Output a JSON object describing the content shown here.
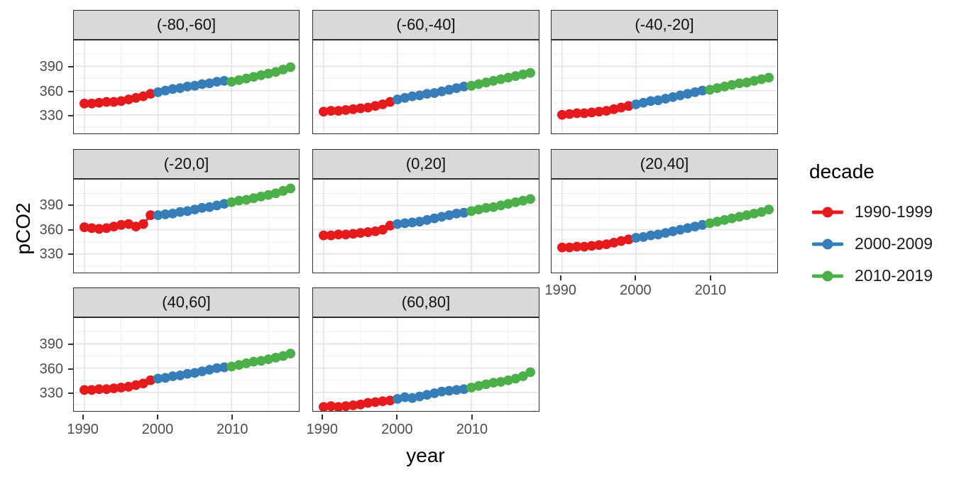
{
  "figure": {
    "y_axis_title": "pCO2",
    "x_axis_title": "year"
  },
  "legend": {
    "title": "decade",
    "entries": [
      {
        "label": "1990-1999",
        "color": "#E41A1C"
      },
      {
        "label": "2000-2009",
        "color": "#377EB8"
      },
      {
        "label": "2010-2019",
        "color": "#4DAF4A"
      }
    ]
  },
  "chart_data": {
    "type": "scatter",
    "title": "",
    "xlabel": "year",
    "ylabel": "pCO2",
    "grid": true,
    "legend_position": "right",
    "x_range": [
      1988.7,
      2019.0
    ],
    "y_range": [
      307,
      422
    ],
    "x_major_ticks": [
      1990,
      2000,
      2010
    ],
    "x_minor_ticks": [
      1995,
      2005,
      2015
    ],
    "y_major_ticks": [
      390,
      360,
      330
    ],
    "y_minor_ticks": [
      315,
      345,
      375,
      405
    ],
    "years": [
      1990,
      1991,
      1992,
      1993,
      1994,
      1995,
      1996,
      1997,
      1998,
      1999,
      2000,
      2001,
      2002,
      2003,
      2004,
      2005,
      2006,
      2007,
      2008,
      2009,
      2010,
      2011,
      2012,
      2013,
      2014,
      2015,
      2016,
      2017,
      2018
    ],
    "decades": [
      {
        "name": "1990-1999",
        "start": 1990,
        "end": 1999,
        "color": "#E41A1C"
      },
      {
        "name": "2000-2009",
        "start": 2000,
        "end": 2009,
        "color": "#377EB8"
      },
      {
        "name": "2010-2019",
        "start": 2010,
        "end": 2019,
        "color": "#4DAF4A"
      }
    ],
    "facets": [
      {
        "label": "(-80,-60]",
        "values": [
          344,
          344,
          345,
          346,
          346,
          347,
          349,
          351,
          353,
          356,
          358,
          360,
          362,
          363,
          365,
          366,
          368,
          369,
          371,
          372,
          371,
          373,
          375,
          377,
          379,
          381,
          383,
          386,
          389
        ]
      },
      {
        "label": "(-60,-40]",
        "values": [
          334,
          335,
          335,
          336,
          337,
          338,
          339,
          341,
          343,
          346,
          349,
          351,
          353,
          354,
          356,
          357,
          359,
          361,
          363,
          365,
          366,
          368,
          370,
          372,
          374,
          376,
          378,
          380,
          382
        ]
      },
      {
        "label": "(-40,-20]",
        "values": [
          330,
          331,
          332,
          332,
          333,
          334,
          335,
          337,
          339,
          341,
          343,
          345,
          347,
          348,
          350,
          352,
          354,
          356,
          358,
          360,
          361,
          363,
          365,
          367,
          369,
          370,
          372,
          374,
          376
        ]
      },
      {
        "label": "(-20,0]",
        "values": [
          363,
          362,
          361,
          362,
          364,
          366,
          367,
          364,
          367,
          378,
          378,
          379,
          380,
          382,
          383,
          385,
          387,
          388,
          390,
          392,
          394,
          396,
          397,
          399,
          401,
          403,
          405,
          408,
          411
        ]
      },
      {
        "label": "(0,20]",
        "values": [
          353,
          353,
          354,
          354,
          355,
          356,
          357,
          358,
          360,
          365,
          367,
          368,
          369,
          370,
          372,
          374,
          376,
          378,
          380,
          381,
          383,
          385,
          387,
          388,
          390,
          392,
          394,
          396,
          398
        ]
      },
      {
        "label": "(20,40]",
        "values": [
          338,
          338,
          339,
          339,
          340,
          341,
          342,
          344,
          346,
          348,
          350,
          351,
          353,
          354,
          356,
          358,
          360,
          362,
          364,
          366,
          368,
          370,
          372,
          374,
          376,
          378,
          380,
          382,
          385
        ]
      },
      {
        "label": "(40,60]",
        "values": [
          333,
          333,
          334,
          334,
          335,
          336,
          337,
          339,
          341,
          345,
          347,
          348,
          350,
          351,
          353,
          354,
          356,
          358,
          360,
          361,
          362,
          364,
          366,
          368,
          369,
          371,
          373,
          375,
          378
        ]
      },
      {
        "label": "(60,80]",
        "values": [
          312,
          313,
          312,
          313,
          314,
          315,
          317,
          318,
          319,
          320,
          322,
          324,
          323,
          325,
          327,
          329,
          331,
          332,
          333,
          334,
          336,
          338,
          340,
          342,
          343,
          345,
          347,
          350,
          355
        ]
      }
    ]
  }
}
